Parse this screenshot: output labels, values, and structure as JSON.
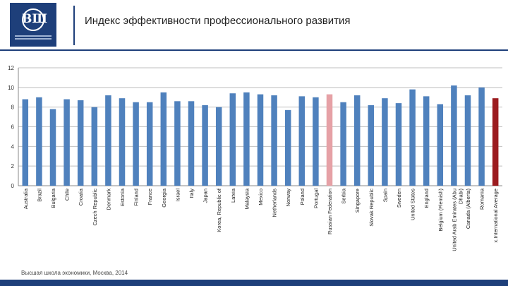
{
  "header": {
    "title": "Индекс эффективности профессионального развития"
  },
  "footer": {
    "text": "Высшая школа экономики, Москва, 2014"
  },
  "colors": {
    "brand": "#1e3f7a",
    "bar": "#4f81bd",
    "highlight_pink": "#e6a1a6",
    "highlight_red": "#9b1b1f"
  },
  "chart_data": {
    "type": "bar",
    "categories": [
      "Australia",
      "Brazil",
      "Bulgaria",
      "Chile",
      "Croatia",
      "Czech Republic",
      "Denmark",
      "Estonia",
      "Finland",
      "France",
      "Georgia",
      "Israel",
      "Italy",
      "Japan",
      "Korea, Republic of",
      "Latvia",
      "Malaysia",
      "Mexico",
      "Netherlands",
      "Norway",
      "Poland",
      "Portugal",
      "Russian Federation",
      "Serbia",
      "Singapore",
      "Slovak Republic",
      "Spain",
      "Sweden",
      "United States",
      "England",
      "Belgium (Flemish)",
      "United Arab Emirates (Abu Dhabi)",
      "Canada (Alberta)",
      "Romania",
      "x.International Average"
    ],
    "values": [
      8.8,
      9.0,
      7.8,
      8.8,
      8.7,
      8.0,
      9.2,
      8.9,
      8.5,
      8.5,
      9.5,
      8.6,
      8.6,
      8.2,
      8.0,
      9.4,
      9.5,
      9.3,
      9.2,
      7.7,
      9.1,
      9.0,
      9.3,
      8.5,
      9.2,
      8.2,
      8.9,
      8.4,
      9.8,
      9.1,
      8.3,
      10.2,
      9.2,
      10.0,
      8.9
    ],
    "bar_colors": [
      "#4f81bd",
      "#4f81bd",
      "#4f81bd",
      "#4f81bd",
      "#4f81bd",
      "#4f81bd",
      "#4f81bd",
      "#4f81bd",
      "#4f81bd",
      "#4f81bd",
      "#4f81bd",
      "#4f81bd",
      "#4f81bd",
      "#4f81bd",
      "#4f81bd",
      "#4f81bd",
      "#4f81bd",
      "#4f81bd",
      "#4f81bd",
      "#4f81bd",
      "#4f81bd",
      "#4f81bd",
      "#e6a1a6",
      "#4f81bd",
      "#4f81bd",
      "#4f81bd",
      "#4f81bd",
      "#4f81bd",
      "#4f81bd",
      "#4f81bd",
      "#4f81bd",
      "#4f81bd",
      "#4f81bd",
      "#4f81bd",
      "#9b1b1f"
    ],
    "ylim": [
      0,
      12
    ],
    "yticks": [
      0,
      2,
      4,
      6,
      8,
      10,
      12
    ],
    "grid": true,
    "legend": "none",
    "title": "",
    "xlabel": "",
    "ylabel": ""
  }
}
